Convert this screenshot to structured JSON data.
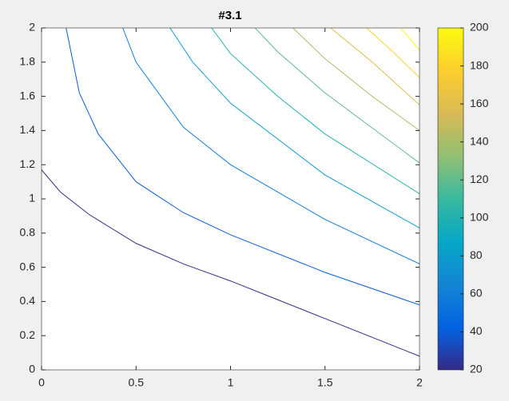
{
  "chart_data": {
    "type": "contour",
    "title": "#3.1",
    "xlim": [
      0,
      2
    ],
    "ylim": [
      0,
      2
    ],
    "xticks": [
      0,
      0.5,
      1,
      1.5,
      2
    ],
    "yticks": [
      0,
      0.2,
      0.4,
      0.6,
      0.8,
      1,
      1.2,
      1.4,
      1.6,
      1.8,
      2
    ],
    "clim": [
      20,
      200
    ],
    "cticks": [
      20,
      40,
      60,
      80,
      100,
      120,
      140,
      160,
      180,
      200
    ],
    "series": [
      {
        "level": 20,
        "x": [
          0,
          0.1,
          0.25,
          0.5,
          0.75,
          1,
          1.25,
          1.5,
          1.75,
          2
        ],
        "y": [
          1.17,
          1.04,
          0.91,
          0.74,
          0.62,
          0.52,
          0.41,
          0.3,
          0.19,
          0.08
        ]
      },
      {
        "level": 40,
        "x": [
          0.13,
          0.2,
          0.3,
          0.5,
          0.75,
          1,
          1.5,
          2
        ],
        "y": [
          2,
          1.62,
          1.38,
          1.1,
          0.92,
          0.79,
          0.57,
          0.38
        ]
      },
      {
        "level": 60,
        "x": [
          0.43,
          0.5,
          0.75,
          1,
          1.5,
          2
        ],
        "y": [
          2,
          1.8,
          1.42,
          1.2,
          0.88,
          0.62
        ]
      },
      {
        "level": 80,
        "x": [
          0.68,
          0.8,
          1,
          1.5,
          2
        ],
        "y": [
          2,
          1.8,
          1.56,
          1.14,
          0.83
        ]
      },
      {
        "level": 100,
        "x": [
          0.9,
          1,
          1.25,
          1.5,
          2
        ],
        "y": [
          2,
          1.85,
          1.6,
          1.38,
          1.03
        ]
      },
      {
        "level": 120,
        "x": [
          1.13,
          1.25,
          1.5,
          2
        ],
        "y": [
          2,
          1.86,
          1.62,
          1.21
        ]
      },
      {
        "level": 140,
        "x": [
          1.33,
          1.5,
          1.75,
          2
        ],
        "y": [
          2,
          1.82,
          1.6,
          1.4
        ]
      },
      {
        "level": 160,
        "x": [
          1.53,
          1.75,
          2
        ],
        "y": [
          2,
          1.8,
          1.55
        ]
      },
      {
        "level": 180,
        "x": [
          1.72,
          1.85,
          2
        ],
        "y": [
          2,
          1.87,
          1.71
        ]
      },
      {
        "level": 200,
        "x": [
          1.9,
          2
        ],
        "y": [
          2,
          1.87
        ]
      }
    ]
  }
}
